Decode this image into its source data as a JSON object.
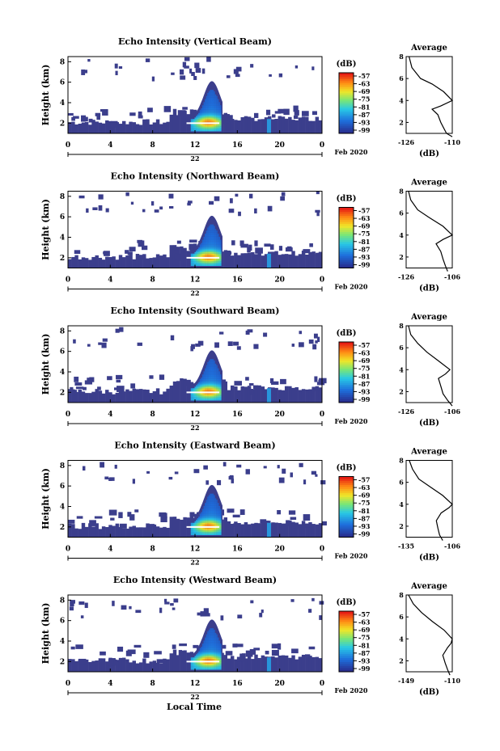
{
  "chart_data": [
    {
      "type": "heatmap",
      "title": "Echo Intensity (Vertical Beam)",
      "ylabel": "Height (km)",
      "yticks": [
        "2",
        "4",
        "6",
        "8"
      ],
      "xticks": [
        "0",
        "4",
        "8",
        "12",
        "16",
        "20",
        "0"
      ],
      "date_label": "22",
      "month_label": "Feb 2020",
      "colorbar_unit": "(dB)",
      "colorbar_ticks": [
        "-57",
        "-63",
        "-69",
        "-75",
        "-81",
        "-87",
        "-93",
        "-99"
      ],
      "avg_title": "Average",
      "avg_xlabel": "(dB)",
      "avg_xticks": [
        "-126",
        "-110"
      ],
      "avg_yticks": [
        "2",
        "4",
        "6",
        "8"
      ],
      "avg_xlim": [
        -126,
        -110
      ],
      "avg_profile": [
        [
          -110,
          0.7
        ],
        [
          -112,
          1
        ],
        [
          -113,
          1.5
        ],
        [
          -114,
          2
        ],
        [
          -115,
          2.7
        ],
        [
          -117,
          3.2
        ],
        [
          -114,
          3.5
        ],
        [
          -110,
          4
        ],
        [
          -113,
          4.8
        ],
        [
          -117,
          5.5
        ],
        [
          -121,
          6
        ],
        [
          -124,
          7
        ],
        [
          -125,
          8
        ]
      ]
    },
    {
      "type": "heatmap",
      "title": "Echo Intensity (Northward Beam)",
      "ylabel": "Height (km)",
      "yticks": [
        "2",
        "4",
        "6",
        "8"
      ],
      "xticks": [
        "0",
        "4",
        "8",
        "12",
        "16",
        "20",
        "0"
      ],
      "date_label": "22",
      "month_label": "Feb 2020",
      "colorbar_unit": "(dB)",
      "colorbar_ticks": [
        "-57",
        "-63",
        "-69",
        "-75",
        "-81",
        "-87",
        "-93",
        "-99"
      ],
      "avg_title": "Average",
      "avg_xlabel": "(dB)",
      "avg_xticks": [
        "-126",
        "-106"
      ],
      "avg_yticks": [
        "2",
        "4",
        "6",
        "8"
      ],
      "avg_xlim": [
        -126,
        -106
      ],
      "avg_profile": [
        [
          -108,
          0.7
        ],
        [
          -109,
          1.2
        ],
        [
          -110,
          1.8
        ],
        [
          -111,
          2.5
        ],
        [
          -113,
          3.2
        ],
        [
          -110,
          3.6
        ],
        [
          -106,
          4
        ],
        [
          -110,
          4.8
        ],
        [
          -116,
          5.6
        ],
        [
          -121,
          6.3
        ],
        [
          -124,
          7.2
        ],
        [
          -125,
          8
        ]
      ]
    },
    {
      "type": "heatmap",
      "title": "Echo Intensity (Southward Beam)",
      "ylabel": "Height (km)",
      "yticks": [
        "2",
        "4",
        "6",
        "8"
      ],
      "xticks": [
        "0",
        "4",
        "8",
        "12",
        "16",
        "20",
        "0"
      ],
      "date_label": "22",
      "month_label": "Feb 2020",
      "colorbar_unit": "(dB)",
      "colorbar_ticks": [
        "-57",
        "-63",
        "-69",
        "-75",
        "-81",
        "-87",
        "-93",
        "-99"
      ],
      "avg_title": "Average",
      "avg_xlabel": "(dB)",
      "avg_xticks": [
        "-126",
        "-106"
      ],
      "avg_yticks": [
        "2",
        "4",
        "6",
        "8"
      ],
      "avg_xlim": [
        -126,
        -106
      ],
      "avg_profile": [
        [
          -106,
          0.7
        ],
        [
          -108,
          1.2
        ],
        [
          -110,
          1.8
        ],
        [
          -111,
          2.5
        ],
        [
          -112,
          3.2
        ],
        [
          -109,
          3.6
        ],
        [
          -107,
          4
        ],
        [
          -112,
          4.8
        ],
        [
          -117,
          5.6
        ],
        [
          -121,
          6.4
        ],
        [
          -124,
          7.2
        ],
        [
          -125,
          8
        ]
      ]
    },
    {
      "type": "heatmap",
      "title": "Echo Intensity (Eastward Beam)",
      "ylabel": "Height (km)",
      "yticks": [
        "2",
        "4",
        "6",
        "8"
      ],
      "xticks": [
        "0",
        "4",
        "8",
        "12",
        "16",
        "20",
        "0"
      ],
      "date_label": "22",
      "month_label": "Feb 2020",
      "colorbar_unit": "(dB)",
      "colorbar_ticks": [
        "-57",
        "-63",
        "-69",
        "-75",
        "-81",
        "-87",
        "-93",
        "-99"
      ],
      "avg_title": "Average",
      "avg_xlabel": "(dB)",
      "avg_xticks": [
        "-135",
        "-106"
      ],
      "avg_yticks": [
        "2",
        "4",
        "6",
        "8"
      ],
      "avg_xlim": [
        -135,
        -106
      ],
      "avg_profile": [
        [
          -112,
          0.7
        ],
        [
          -114,
          1.2
        ],
        [
          -115,
          1.8
        ],
        [
          -116,
          2.5
        ],
        [
          -113,
          3.2
        ],
        [
          -108,
          3.7
        ],
        [
          -106,
          4
        ],
        [
          -112,
          4.8
        ],
        [
          -120,
          5.6
        ],
        [
          -127,
          6.3
        ],
        [
          -131,
          7.2
        ],
        [
          -133,
          8
        ]
      ]
    },
    {
      "type": "heatmap",
      "title": "Echo Intensity (Westward Beam)",
      "ylabel": "Height (km)",
      "yticks": [
        "2",
        "4",
        "6",
        "8"
      ],
      "xticks": [
        "0",
        "4",
        "8",
        "12",
        "16",
        "20",
        "0"
      ],
      "date_label": "22",
      "month_label": "Feb 2020",
      "colorbar_unit": "(dB)",
      "colorbar_ticks": [
        "-57",
        "-63",
        "-69",
        "-75",
        "-81",
        "-87",
        "-93",
        "-99"
      ],
      "avg_title": "Average",
      "avg_xlabel": "(dB)",
      "avg_xticks": [
        "-149",
        "-110"
      ],
      "avg_yticks": [
        "2",
        "4",
        "6",
        "8"
      ],
      "avg_xlim": [
        -149,
        -110
      ],
      "avg_profile": [
        [
          -112,
          0.7
        ],
        [
          -114,
          1.2
        ],
        [
          -116,
          1.8
        ],
        [
          -118,
          2.5
        ],
        [
          -114,
          3.2
        ],
        [
          -111,
          3.6
        ],
        [
          -110,
          4
        ],
        [
          -117,
          4.8
        ],
        [
          -127,
          5.6
        ],
        [
          -136,
          6.4
        ],
        [
          -143,
          7.2
        ],
        [
          -147,
          8
        ]
      ]
    }
  ],
  "x_axis_label": "Local Time",
  "colors": {
    "background": "#3b3e8c",
    "low": "#2a2f9a",
    "mid": "#2fd3d8",
    "high": "#ffd400",
    "peak": "#ffffff",
    "frame": "#000000"
  }
}
